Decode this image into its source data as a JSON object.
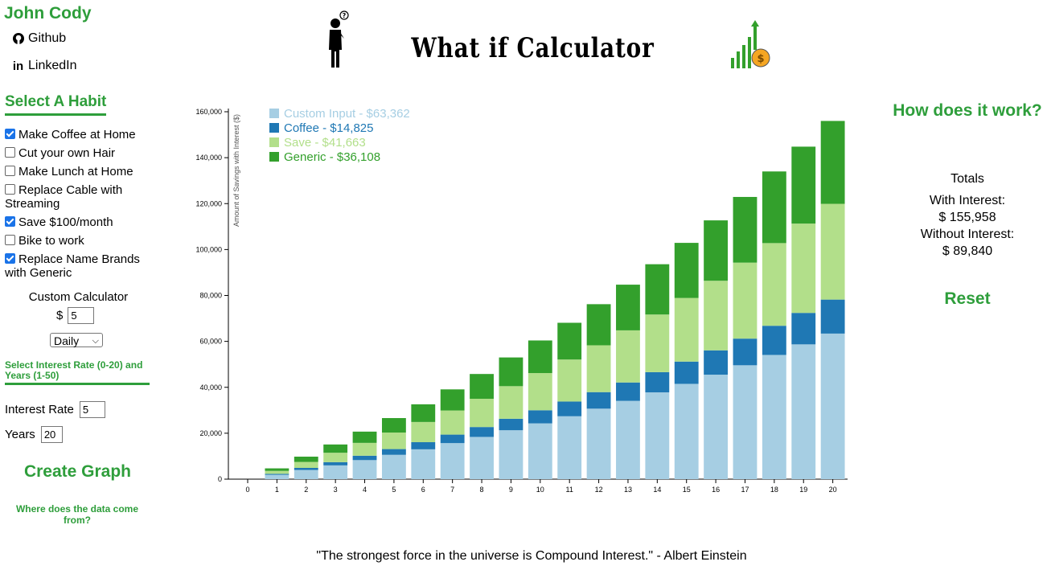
{
  "author": "John Cody",
  "links": {
    "github": "Github",
    "linkedin": "LinkedIn"
  },
  "app_title": "What if Calculator",
  "habits": {
    "heading": "Select A Habit",
    "items": [
      {
        "label": "Make Coffee at Home",
        "checked": true
      },
      {
        "label": "Cut your own Hair",
        "checked": false
      },
      {
        "label": "Make Lunch at Home",
        "checked": false
      },
      {
        "label": "Replace Cable with Streaming",
        "checked": false
      },
      {
        "label": "Save $100/month",
        "checked": true
      },
      {
        "label": "Bike to work",
        "checked": false
      },
      {
        "label": "Replace Name Brands with Generic",
        "checked": true
      }
    ]
  },
  "custom_calculator": {
    "title": "Custom Calculator",
    "currency": "$",
    "amount": "5",
    "frequency": "Daily"
  },
  "rate_section": {
    "heading": "Select Interest Rate (0-20) and Years (1-50)",
    "rate_label": "Interest Rate",
    "rate_value": "5",
    "years_label": "Years",
    "years_value": "20"
  },
  "create_graph_label": "Create Graph",
  "data_source_label": "Where does the data come from?",
  "how_it_works_label": "How does it work?",
  "totals": {
    "title": "Totals",
    "with_interest_label": "With Interest:",
    "with_interest_value": "$ 155,958",
    "without_interest_label": "Without Interest:",
    "without_interest_value": "$ 89,840"
  },
  "reset_label": "Reset",
  "quote": "\"The strongest force in the universe is Compound Interest.\" - Albert Einstein",
  "colors": {
    "accent": "#2e9e3b",
    "custom": "#a6cee3",
    "coffee": "#1f78b4",
    "save": "#b2df8a",
    "generic": "#33a02c"
  },
  "chart_data": {
    "type": "bar",
    "stacked": true,
    "x": [
      0,
      1,
      2,
      3,
      4,
      5,
      6,
      7,
      8,
      9,
      10,
      11,
      12,
      13,
      14,
      15,
      16,
      17,
      18,
      19,
      20
    ],
    "ylabel": "Amount of Savings with Interest ($)",
    "ylim": [
      0,
      160000
    ],
    "yticks": [
      0,
      20000,
      40000,
      60000,
      80000,
      100000,
      120000,
      140000,
      160000
    ],
    "ytick_labels": [
      "0",
      "20,000",
      "40,000",
      "60,000",
      "80,000",
      "100,000",
      "120,000",
      "140,000",
      "160,000"
    ],
    "legend_position": "top-left",
    "series": [
      {
        "name": "Custom Input - $63,362",
        "color": "#a6cee3",
        "values": [
          0,
          1900,
          4000,
          6000,
          8300,
          10600,
          13000,
          15700,
          18400,
          21300,
          24300,
          27400,
          30700,
          34100,
          37800,
          41500,
          45500,
          49600,
          54100,
          58700,
          63400
        ]
      },
      {
        "name": "Coffee - $14,825",
        "color": "#1f78b4",
        "values": [
          0,
          400,
          900,
          1400,
          1900,
          2500,
          3100,
          3700,
          4300,
          5000,
          5700,
          6400,
          7200,
          8000,
          8800,
          9700,
          10600,
          11600,
          12700,
          13700,
          14800
        ]
      },
      {
        "name": "Save - $41,663",
        "color": "#b2df8a",
        "values": [
          0,
          1300,
          2600,
          4100,
          5600,
          7200,
          8800,
          10500,
          12300,
          14200,
          16200,
          18300,
          20400,
          22700,
          25100,
          27700,
          30300,
          33100,
          36000,
          38900,
          41700
        ]
      },
      {
        "name": "Generic - $36,108",
        "color": "#33a02c",
        "values": [
          0,
          1100,
          2300,
          3600,
          4900,
          6300,
          7700,
          9200,
          10800,
          12500,
          14200,
          16000,
          17900,
          19900,
          21900,
          24000,
          26300,
          28600,
          31200,
          33500,
          36100
        ]
      }
    ]
  }
}
